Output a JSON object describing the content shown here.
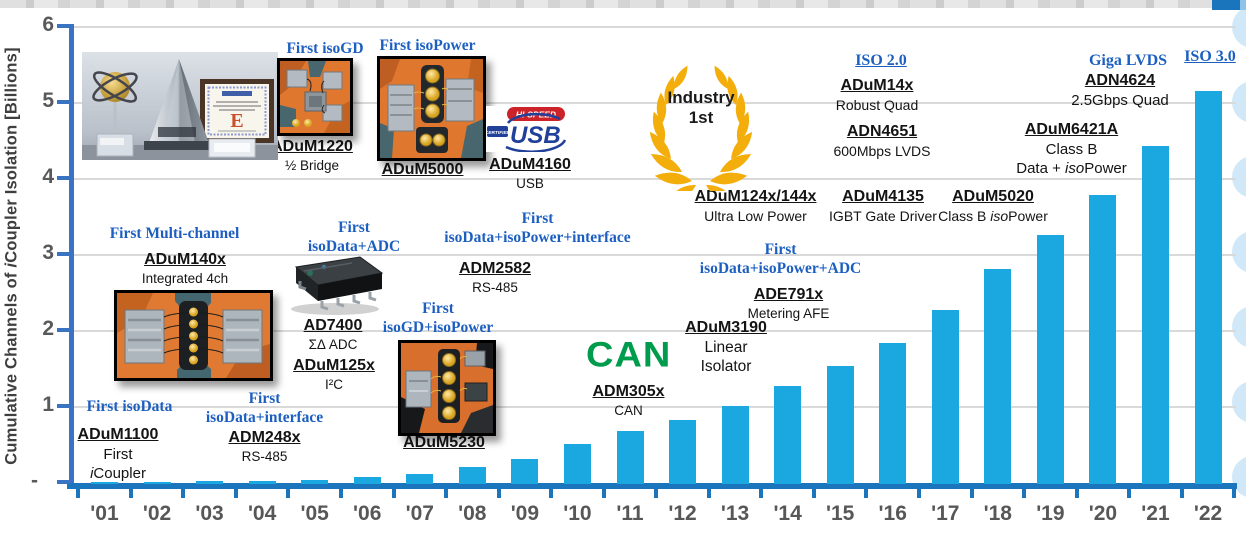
{
  "colors": {
    "bar": "#1BA8E0",
    "x_axis": "#1B75BC",
    "y_axis": "#3A72C4",
    "gridline": "#D9D9D9",
    "callout_blue": "#1C5FC0",
    "tick_label_gray": "#595959",
    "wreath_gold": "#F3AE0C",
    "can_green": "#009C4D",
    "usb_blue": "#21409A",
    "usb_red": "#CC2229"
  },
  "y_axis": {
    "title_pre": "Cumulative Channels of ",
    "title_italic": "i",
    "title_post": "Coupler Isolation [Billions]",
    "tick_labels": [
      "6",
      "5",
      "4",
      "3",
      "2",
      "1",
      "-"
    ]
  },
  "chart_data": {
    "type": "bar",
    "categories": [
      "'01",
      "'02",
      "'03",
      "'04",
      "'05",
      "'06",
      "'07",
      "'08",
      "'09",
      "'10",
      "'11",
      "'12",
      "'13",
      "'14",
      "'15",
      "'16",
      "'17",
      "'18",
      "'19",
      "'20",
      "'21",
      "'22"
    ],
    "values": [
      0,
      0,
      0.01,
      0.02,
      0.03,
      0.07,
      0.1,
      0.2,
      0.3,
      0.5,
      0.67,
      0.82,
      1.0,
      1.27,
      1.53,
      1.83,
      2.26,
      2.8,
      3.25,
      3.78,
      4.42,
      5.15
    ],
    "title": "",
    "xlabel": "",
    "ylabel": "Cumulative Channels of iCoupler Isolation [Billions]",
    "ylim": [
      0,
      6
    ],
    "grid": true,
    "bar_color": "#1BA8E0"
  },
  "callouts": {
    "first_isodata": "First isoData",
    "first_isodata_interface_1": "First",
    "first_isodata_interface_2": "isoData+interface",
    "first_multichannel": "First Multi-channel",
    "first_isodata_adc_1": "First",
    "first_isodata_adc_2": "isoData+ADC",
    "first_isogd": "First isoGD",
    "first_isopower": "First isoPower",
    "first_isodata_isopower_interface_1": "First",
    "first_isodata_isopower_interface_2": "isoData+isoPower+interface",
    "first_isogd_isopower_1": "First",
    "first_isogd_isopower_2": "isoGD+isoPower",
    "first_isodata_isopower_adc_1": "First",
    "first_isodata_isopower_adc_2": "isoData+isoPower+ADC",
    "iso_2_0": "ISO 2.0",
    "giga_lvds": "Giga LVDS",
    "iso_3_0": "ISO 3.0"
  },
  "products": {
    "adum1100": {
      "name": "ADuM1100",
      "desc1": "First",
      "desc2_italic": "i",
      "desc2": "Coupler"
    },
    "adm248x": {
      "name": "ADM248x",
      "desc": "RS-485"
    },
    "adum140x": {
      "name": "ADuM140x",
      "desc": "Integrated 4ch"
    },
    "ad7400": {
      "name": "AD7400",
      "desc": "ΣΔ ADC"
    },
    "adum125x": {
      "name": "ADuM125x",
      "desc": "I²C"
    },
    "adum1220": {
      "name": "ADuM1220",
      "desc": "½ Bridge"
    },
    "adum5000": {
      "name": "ADuM5000"
    },
    "adum4160": {
      "name": "ADuM4160",
      "desc": "USB"
    },
    "adm2582": {
      "name": "ADM2582",
      "desc": "RS-485"
    },
    "adum5230": {
      "name": "ADuM5230"
    },
    "adm305x": {
      "name": "ADM305x",
      "desc": "CAN"
    },
    "adum3190": {
      "name": "ADuM3190",
      "desc1": "Linear",
      "desc2": "Isolator"
    },
    "ade791x": {
      "name": "ADE791x",
      "desc": "Metering AFE"
    },
    "adum124x_144x": {
      "name": "ADuM124x/144x",
      "desc": "Ultra Low Power"
    },
    "adum4135": {
      "name": "ADuM4135",
      "desc": "IGBT Gate Driver"
    },
    "adum5020": {
      "name": "ADuM5020",
      "desc_pre": "Class B ",
      "desc_iso": "iso",
      "desc_post": "Power"
    },
    "adum14x": {
      "name": "ADuM14x",
      "desc": "Robust Quad"
    },
    "adn4651": {
      "name": "ADN4651",
      "desc": "600Mbps LVDS"
    },
    "adn4624": {
      "name": "ADN4624",
      "desc": "2.5Gbps Quad"
    },
    "adum6421a": {
      "name": "ADuM6421A",
      "desc1": "Class B",
      "desc2_pre": "Data + ",
      "desc2_iso": "iso",
      "desc2_post": "Power"
    }
  },
  "badges": {
    "industry_first_line1": "Industry",
    "industry_first_line2": "1st",
    "can_logo_text": "CAN",
    "usb_logo": {
      "certified": "CERTIFIED",
      "hi_speed": "HI-SPEED",
      "usb": "USB"
    }
  }
}
